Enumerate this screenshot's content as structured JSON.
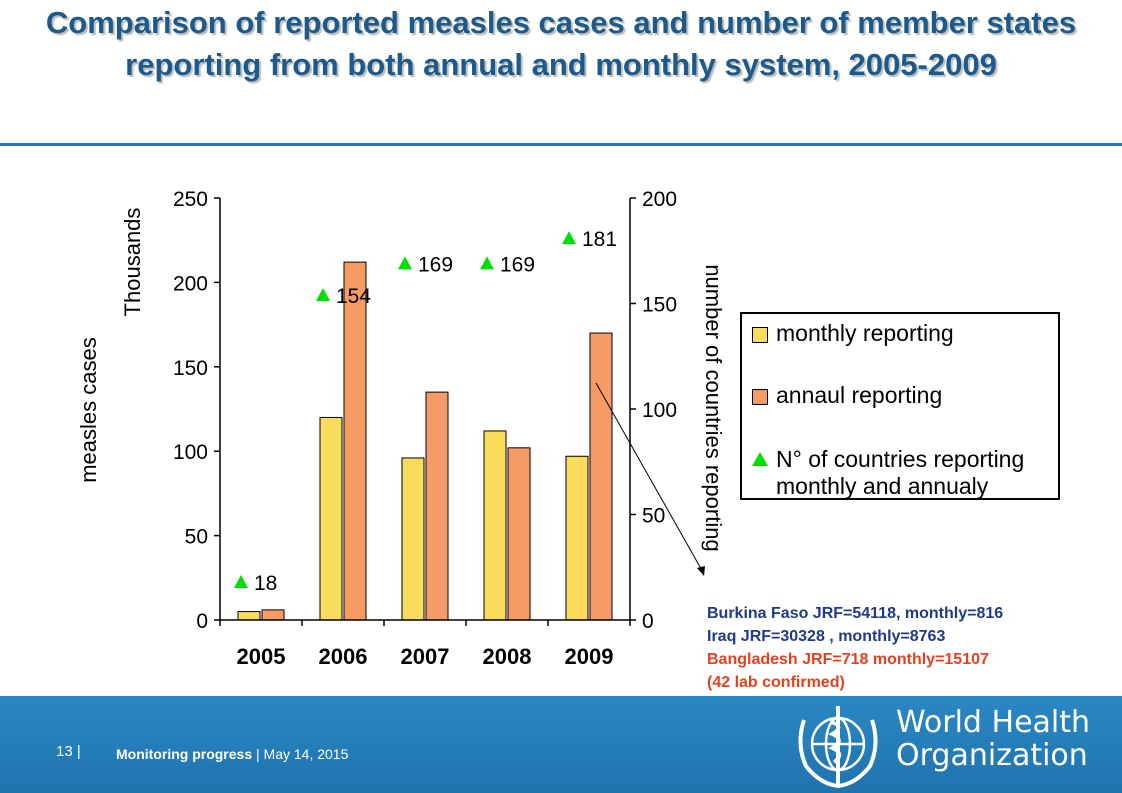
{
  "slide": {
    "title": "Comparison of reported measles cases and number of member states reporting from both annual and monthly system, 2005-2009"
  },
  "chart_data": {
    "type": "bar",
    "categories": [
      "2005",
      "2006",
      "2007",
      "2008",
      "2009"
    ],
    "series": [
      {
        "name": "monthly reporting",
        "values": [
          5,
          120,
          96,
          112,
          97
        ],
        "color": "#f9dc5c"
      },
      {
        "name": "annaul reporting",
        "values": [
          6,
          212,
          135,
          102,
          170
        ],
        "color": "#f79b66"
      }
    ],
    "countries_series": {
      "name": "N° of countries reporting monthly and annualy",
      "values": [
        18,
        154,
        169,
        169,
        181
      ],
      "labels": [
        "18",
        "154",
        "169",
        "169",
        "181"
      ],
      "color": "#00e000"
    },
    "y_left": {
      "label": "measles cases",
      "unit_label": "Thousands",
      "ylim": [
        0,
        250
      ],
      "ticks": [
        "0",
        "50",
        "100",
        "150",
        "200",
        "250"
      ]
    },
    "y_right": {
      "label": "number of countries reporting",
      "ylim": [
        0,
        200
      ],
      "ticks": [
        "0",
        "50",
        "100",
        "150",
        "200"
      ]
    },
    "grid": false,
    "legend_position": "right"
  },
  "notes": {
    "line1": "Burkina Faso JRF=54118, monthly=816",
    "line2": "Iraq JRF=30328 , monthly=8763",
    "line3": "Bangladesh JRF=718 monthly=15107",
    "line4": "(42 lab confirmed)",
    "colors": {
      "dark": "#1f3a8a",
      "red": "#e8401c"
    }
  },
  "footer": {
    "page": "13 |",
    "section": "Monitoring progress",
    "separator": "|",
    "date": "May 14, 2015",
    "org_line1": "World Health",
    "org_line2": "Organization",
    "background": "#1f7ab8"
  }
}
